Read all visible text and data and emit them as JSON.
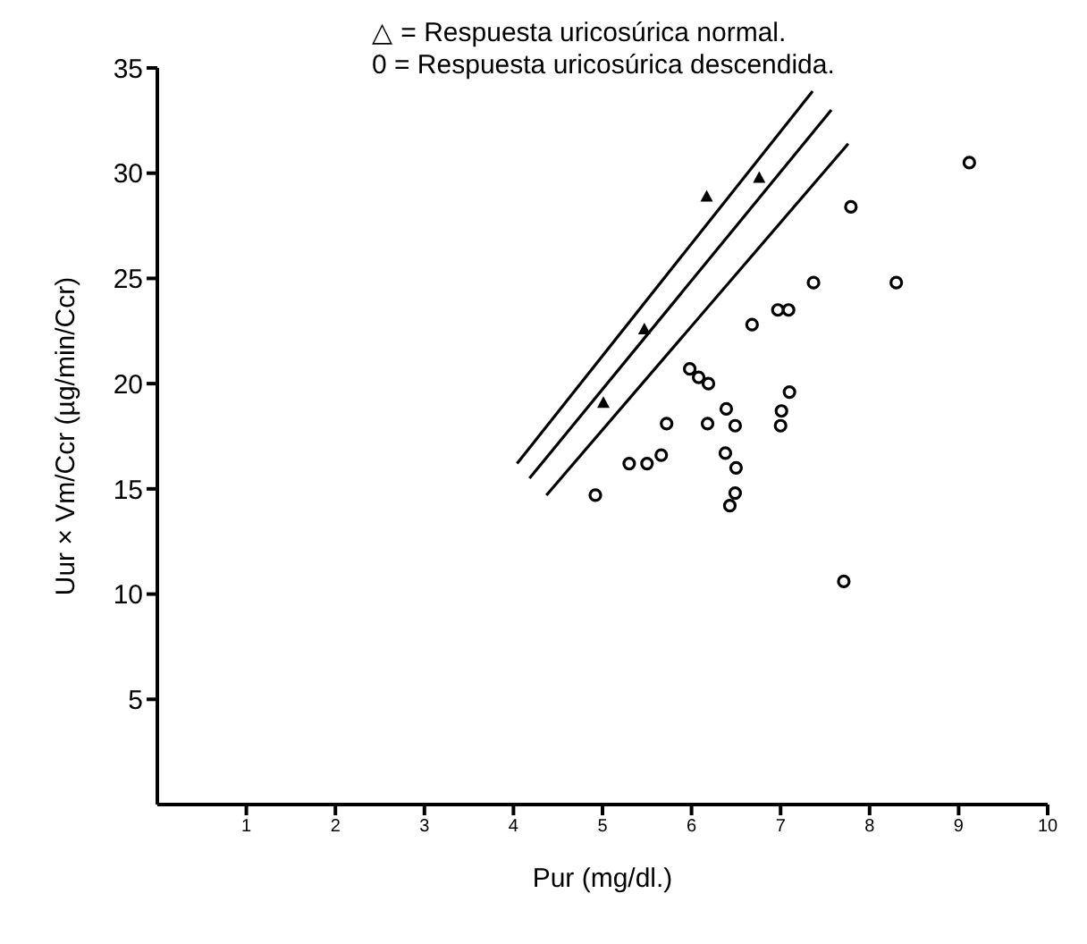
{
  "chart_data": {
    "type": "scatter",
    "xlabel": "Pur (mg/dl.)",
    "ylabel": "Uur × Vm/Ccr (µg/min/Ccr)",
    "annotations": [
      "△ = Respuesta uricosúrica normal.",
      "0 = Respuesta uricosúrica descendida."
    ],
    "xlim": [
      0,
      10
    ],
    "ylim": [
      0,
      35
    ],
    "xticks": [
      1,
      2,
      3,
      4,
      5,
      6,
      7,
      8,
      9,
      10
    ],
    "yticks": [
      5,
      10,
      15,
      20,
      25,
      30,
      35
    ],
    "grid": false,
    "legend": false,
    "series": [
      {
        "marker": "triangle",
        "color": "#000000",
        "x": [
          6.76,
          6.17,
          5.47,
          5.01
        ],
        "values": [
          29.8,
          28.9,
          22.6,
          19.1
        ]
      },
      {
        "marker": "circle",
        "color": "#000000",
        "x": [
          9.12,
          7.79,
          7.37,
          8.3,
          6.97,
          7.09,
          6.68,
          5.98,
          6.08,
          6.19,
          7.1,
          6.39,
          7.01,
          5.72,
          6.18,
          6.49,
          7.0,
          5.3,
          5.5,
          5.66,
          6.38,
          6.5,
          4.92,
          6.49,
          6.43,
          7.71
        ],
        "values": [
          30.5,
          28.4,
          24.8,
          24.8,
          23.5,
          23.5,
          22.8,
          20.7,
          20.3,
          20.0,
          19.6,
          18.8,
          18.7,
          18.1,
          18.1,
          18.0,
          18.0,
          16.2,
          16.2,
          16.6,
          16.7,
          16.0,
          14.7,
          14.8,
          14.2,
          10.6
        ]
      },
      {
        "type": "line",
        "marker": "none",
        "line_style": "solid",
        "color": "#000000",
        "x": [
          4.04,
          7.36
        ],
        "values": [
          16.2,
          33.9
        ]
      },
      {
        "type": "line",
        "marker": "none",
        "line_style": "solid",
        "color": "#000000",
        "x": [
          4.18,
          7.57
        ],
        "values": [
          15.5,
          33.0
        ]
      },
      {
        "type": "line",
        "marker": "none",
        "line_style": "solid",
        "color": "#000000",
        "x": [
          4.37,
          7.76
        ],
        "values": [
          14.7,
          31.4
        ]
      }
    ]
  }
}
